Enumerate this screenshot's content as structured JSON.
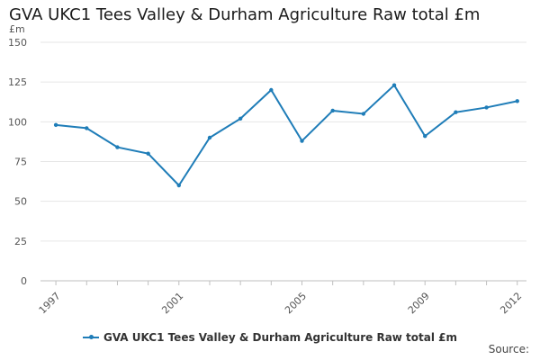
{
  "chart_data": {
    "type": "line",
    "title": "GVA UKC1 Tees Valley & Durham Agriculture Raw total £m",
    "ylabel": "£m",
    "xlabel": "",
    "ylim": [
      0,
      150
    ],
    "yticks": [
      "0",
      "25",
      "50",
      "75",
      "100",
      "125",
      "150"
    ],
    "x": [
      1997,
      1998,
      1999,
      2000,
      2001,
      2002,
      2003,
      2004,
      2005,
      2006,
      2007,
      2008,
      2009,
      2010,
      2011,
      2012
    ],
    "xtick_labels": [
      "1997",
      "2001",
      "2005",
      "2009",
      "2012"
    ],
    "series": [
      {
        "name": "GVA UKC1 Tees Valley & Durham Agriculture Raw total £m",
        "color": "#1f7db8",
        "values": [
          98,
          96,
          84,
          80,
          60,
          90,
          102,
          120,
          88,
          107,
          105,
          123,
          91,
          106,
          109,
          113
        ]
      }
    ],
    "grid": true,
    "legend_position": "bottom"
  },
  "footer": {
    "source": "Source:"
  }
}
